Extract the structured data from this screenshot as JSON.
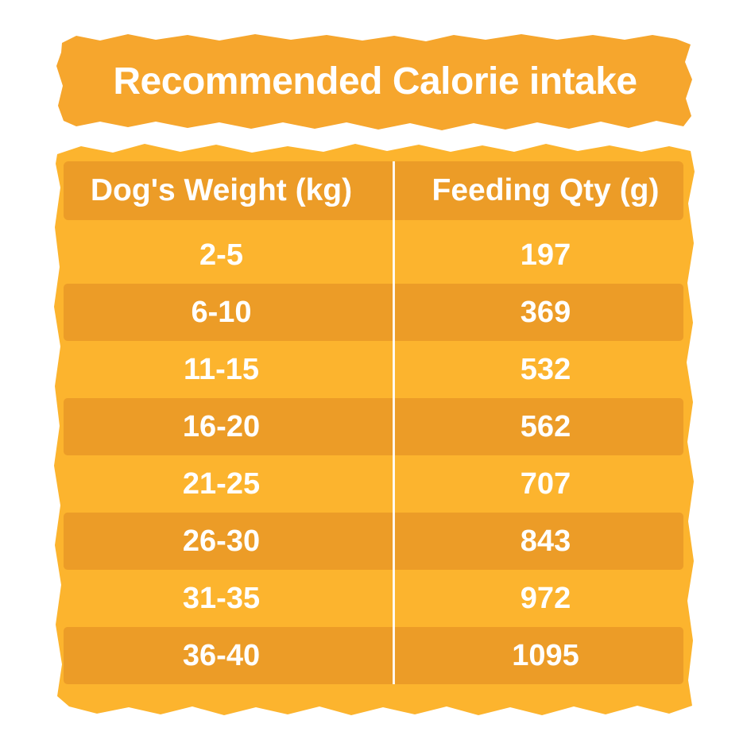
{
  "title": "Recommended Calorie intake",
  "chart_data": {
    "type": "table",
    "title": "Recommended Calorie intake",
    "columns": [
      "Dog's Weight (kg)",
      "Feeding Qty (g)"
    ],
    "rows": [
      [
        "2-5",
        197
      ],
      [
        "6-10",
        369
      ],
      [
        "11-15",
        532
      ],
      [
        "16-20",
        562
      ],
      [
        "21-25",
        707
      ],
      [
        "26-30",
        843
      ],
      [
        "31-35",
        972
      ],
      [
        "36-40",
        1095
      ]
    ]
  },
  "colors": {
    "banner": "#F6A62D",
    "body": "#FCB42E",
    "band": "#EC9C27",
    "text": "#FFFFFF"
  }
}
